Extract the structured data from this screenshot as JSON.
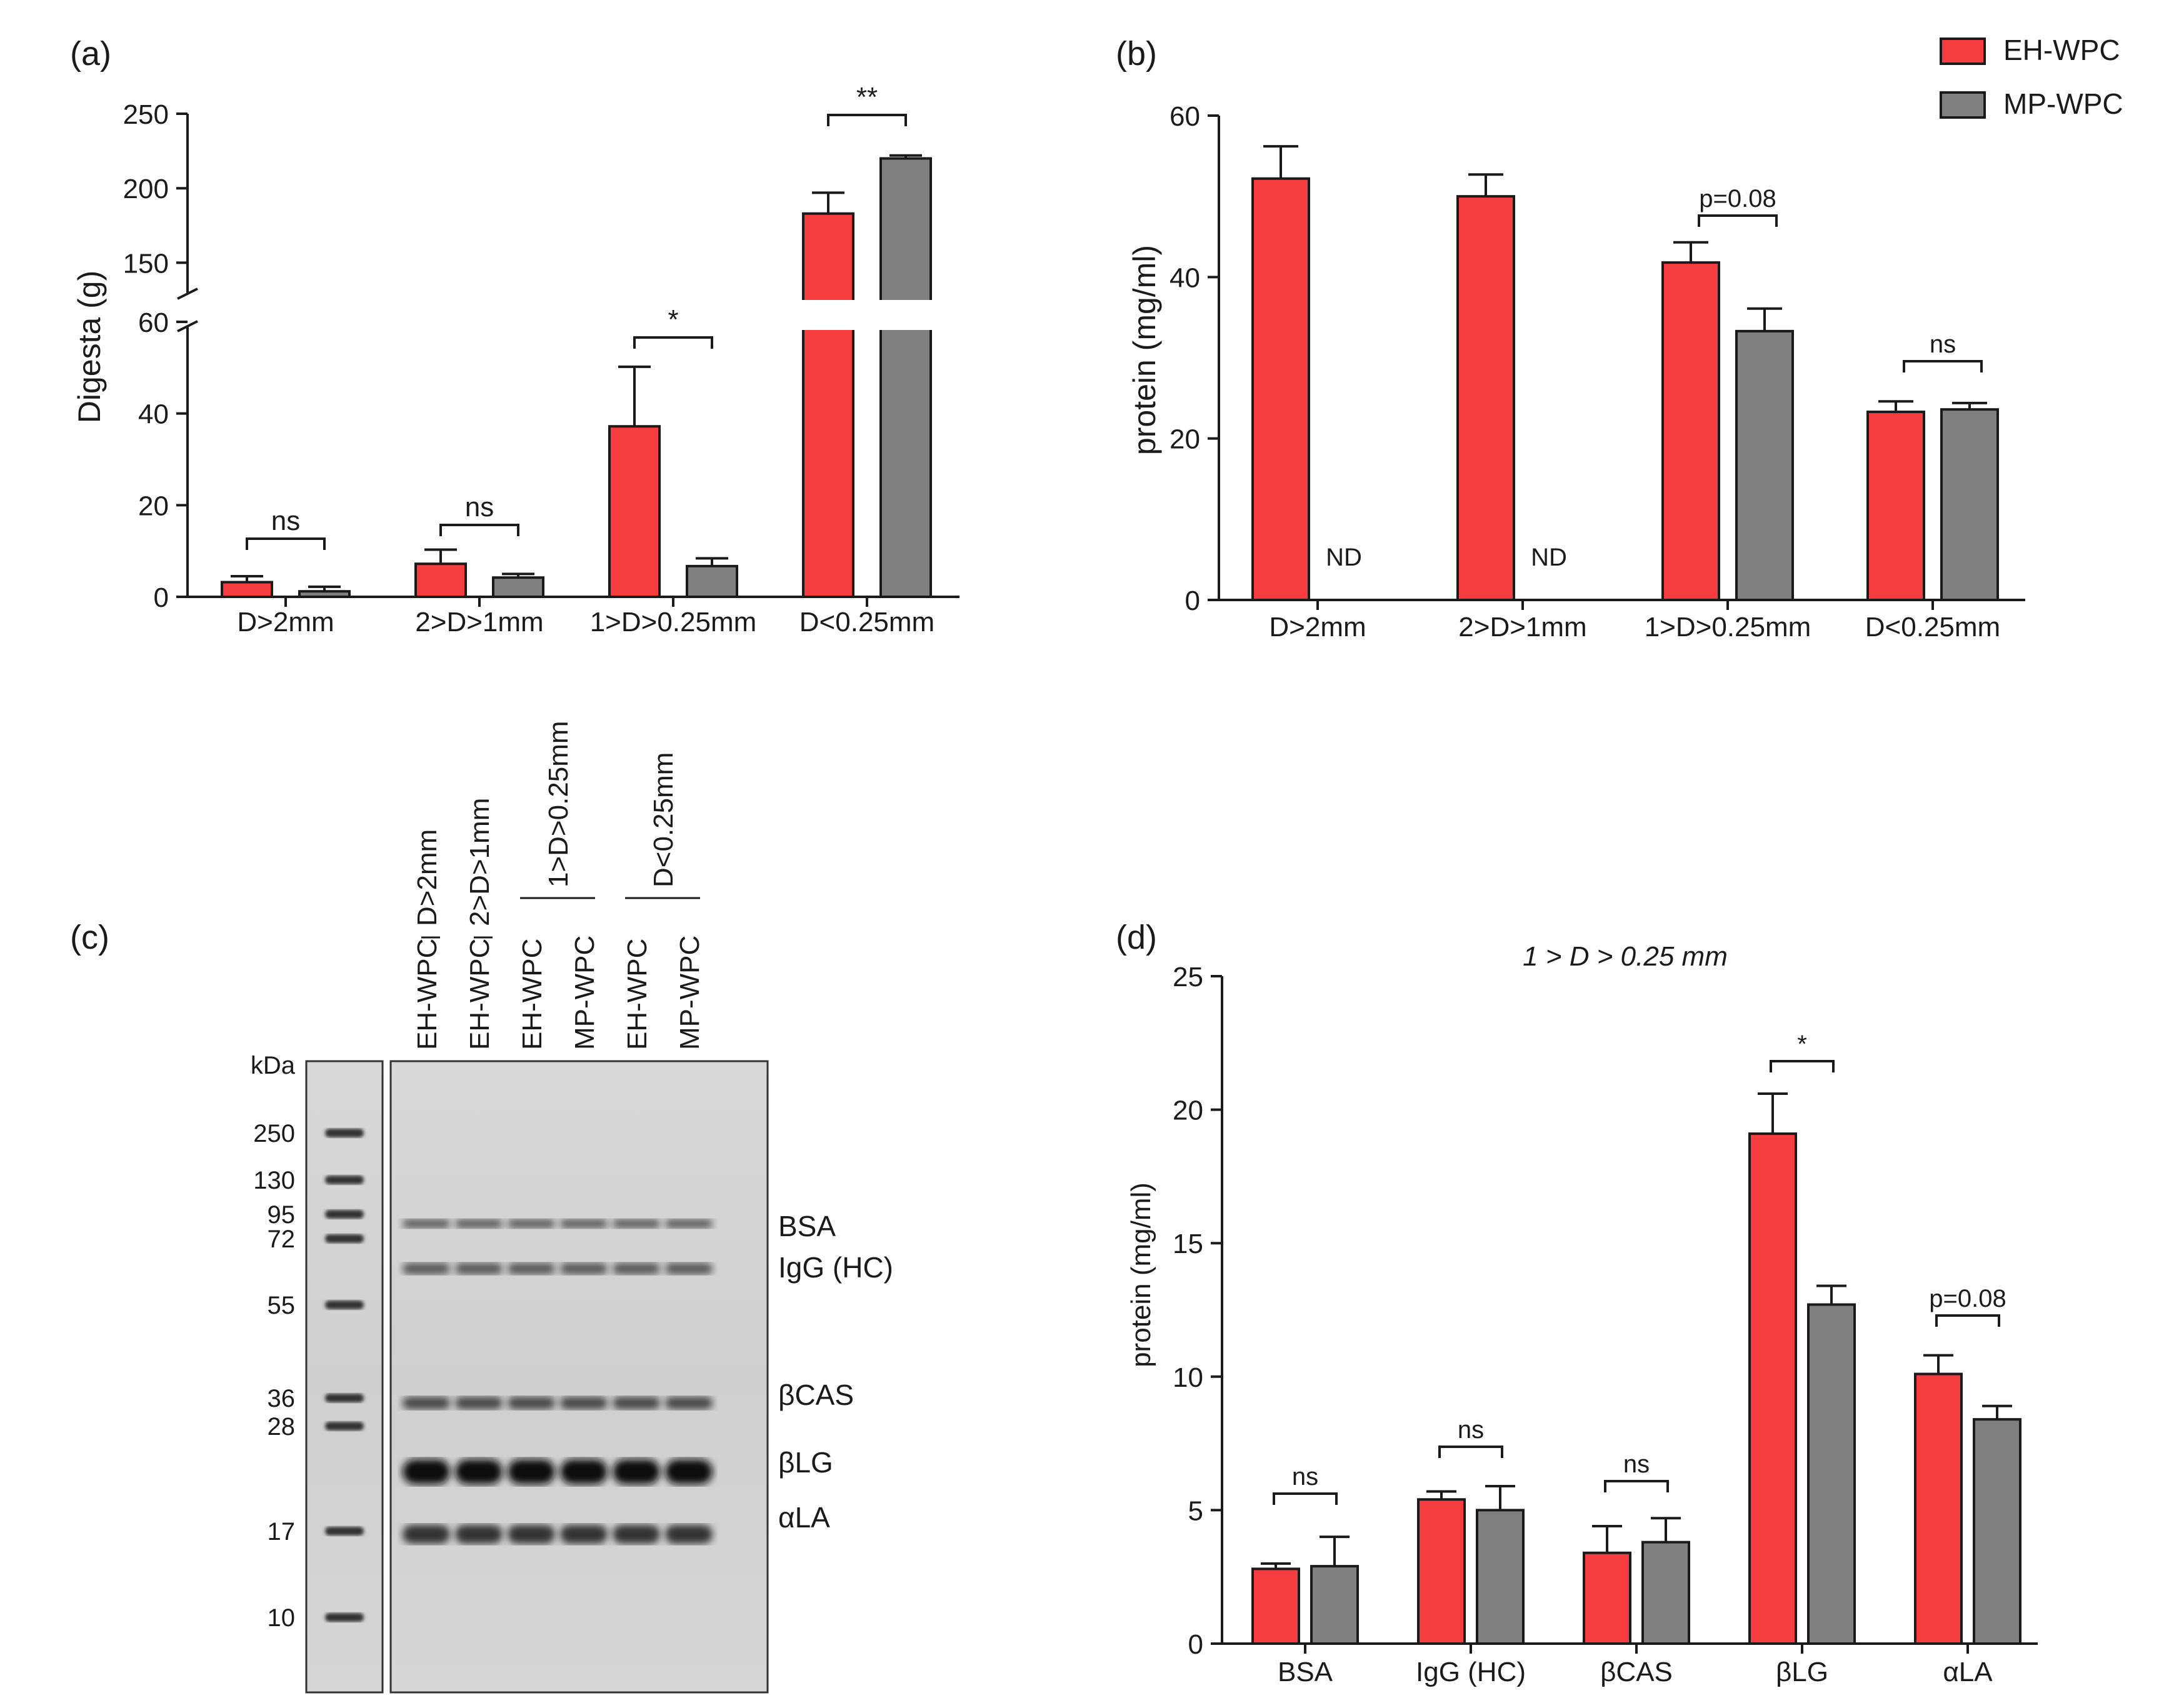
{
  "colors": {
    "eh": "#f53d3f",
    "mp": "#808080",
    "axis": "#1a1a1a"
  },
  "legend": [
    {
      "name": "EH-WPC",
      "color": "#f53d3f"
    },
    {
      "name": "MP-WPC",
      "color": "#808080"
    }
  ],
  "chart_data": [
    {
      "panel": "(a)",
      "type": "bar",
      "title": "",
      "ylabel": "Digesta (g)",
      "xlabel": "",
      "categories": [
        "D>2mm",
        "2>D>1mm",
        "1>D>0.25mm",
        "D<0.25mm"
      ],
      "series": [
        {
          "name": "EH-WPC",
          "values": [
            3.2,
            7.2,
            37.2,
            183
          ],
          "errors": [
            1.3,
            3.1,
            13.0,
            14
          ]
        },
        {
          "name": "MP-WPC",
          "values": [
            1.2,
            4.2,
            6.7,
            220
          ],
          "errors": [
            1.0,
            0.8,
            1.7,
            2
          ]
        }
      ],
      "axis_break": {
        "lower_range": [
          0,
          60
        ],
        "upper_range": [
          125,
          250
        ]
      },
      "lower_ticks": [
        0,
        20,
        40,
        60
      ],
      "upper_ticks": [
        150,
        200,
        250
      ],
      "annotations": [
        "ns",
        "ns",
        "*",
        "**"
      ]
    },
    {
      "panel": "(b)",
      "type": "bar",
      "title": "",
      "ylabel": "protein (mg/ml)",
      "xlabel": "",
      "categories": [
        "D>2mm",
        "2>D>1mm",
        "1>D>0.25mm",
        "D<0.25mm"
      ],
      "series": [
        {
          "name": "EH-WPC",
          "values": [
            52.2,
            50.0,
            41.8,
            23.3
          ],
          "errors": [
            4.0,
            2.7,
            2.5,
            1.3
          ]
        },
        {
          "name": "MP-WPC",
          "values": [
            null,
            null,
            33.3,
            23.6
          ],
          "errors": [
            null,
            null,
            2.8,
            0.8
          ]
        }
      ],
      "ylim": [
        0,
        60
      ],
      "yticks": [
        0,
        20,
        40,
        60
      ],
      "not_detected": [
        "ND",
        "ND"
      ],
      "annotations": [
        "p=0.08",
        "ns"
      ]
    },
    {
      "panel": "(d)",
      "type": "bar",
      "title": "1 > D > 0.25 mm",
      "ylabel": "protein (mg/ml)",
      "xlabel": "",
      "categories": [
        "BSA",
        "IgG (HC)",
        "βCAS",
        "βLG",
        "αLA"
      ],
      "series": [
        {
          "name": "EH-WPC",
          "values": [
            2.8,
            5.4,
            3.4,
            19.1,
            10.1
          ],
          "errors": [
            0.2,
            0.3,
            1.0,
            1.5,
            0.7
          ]
        },
        {
          "name": "MP-WPC",
          "values": [
            2.9,
            5.0,
            3.8,
            12.7,
            8.4
          ],
          "errors": [
            1.1,
            0.9,
            0.9,
            0.7,
            0.5
          ]
        }
      ],
      "ylim": [
        0,
        25
      ],
      "yticks": [
        0,
        5,
        10,
        15,
        20,
        25
      ],
      "annotations": [
        "ns",
        "ns",
        "ns",
        "*",
        "p=0.08"
      ]
    }
  ],
  "gel": {
    "panel": "(c)",
    "unit_label": "kDa",
    "ladder": [
      "250",
      "130",
      "95",
      "72",
      "55",
      "36",
      "28",
      "17",
      "10"
    ],
    "lanes": [
      "EH-WPC",
      "EH-WPC",
      "EH-WPC",
      "MP-WPC",
      "EH-WPC",
      "MP-WPC"
    ],
    "lane_groups": [
      "D>2mm",
      "2>D>1mm",
      "1>D>0.25mm",
      "D<0.25mm"
    ],
    "band_labels": [
      "BSA",
      "IgG (HC)",
      "βCAS",
      "βLG",
      "αLA"
    ]
  }
}
